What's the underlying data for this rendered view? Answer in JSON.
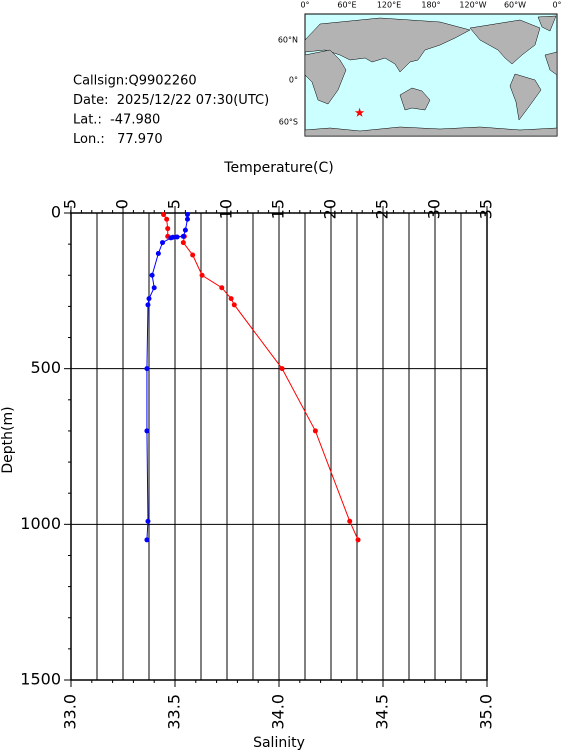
{
  "info": {
    "lines": [
      "Callsign:Q9902260",
      "Date:  2025/12/22 07:30(UTC)",
      "Lat.:  -47.980",
      "Lon.:   77.970"
    ]
  },
  "map": {
    "xticks": [
      "0°",
      "60°E",
      "120°E",
      "180°",
      "120°W",
      "60°W",
      "0°"
    ],
    "yticks": [
      "60°N",
      "0°",
      "60°S"
    ],
    "station_color": "#ff0000"
  },
  "chart_data": {
    "type": "line",
    "xlabel": "Temperature(C)",
    "x2label": "Salinity",
    "ylabel": "Depth(m)",
    "xlim": [
      -5,
      35
    ],
    "xticks": [
      -5,
      0,
      5,
      10,
      15,
      20,
      25,
      30,
      35
    ],
    "x2lim": [
      33.0,
      35.0
    ],
    "x2ticks": [
      {
        "value": 33.0,
        "label": "33.0"
      },
      {
        "value": 33.5,
        "label": "33.5"
      },
      {
        "value": 34.0,
        "label": "34.0"
      },
      {
        "value": 34.5,
        "label": "34.5"
      },
      {
        "value": 35.0,
        "label": "35.0"
      }
    ],
    "ylim": [
      0,
      1500
    ],
    "yticks": [
      0,
      500,
      1000,
      1500
    ],
    "grid": true,
    "series": [
      {
        "color": "#ff0000",
        "axis": "x",
        "depths": [
          5,
          20,
          50,
          75,
          75,
          95,
          135,
          200,
          240,
          275,
          295,
          500,
          700,
          990,
          1050
        ],
        "values": [
          3.9,
          4.2,
          4.3,
          4.3,
          5.9,
          5.8,
          6.7,
          7.6,
          9.5,
          10.4,
          10.7,
          15.3,
          18.5,
          21.8,
          22.6
        ]
      },
      {
        "color": "#0000ff",
        "axis": "x2",
        "depths": [
          5,
          20,
          55,
          75,
          77,
          78,
          80,
          95,
          130,
          200,
          240,
          275,
          295,
          500,
          700,
          990,
          1050
        ],
        "values": [
          33.56,
          33.56,
          33.55,
          33.54,
          33.51,
          33.49,
          33.48,
          33.44,
          33.42,
          33.39,
          33.4,
          33.375,
          33.37,
          33.365,
          33.365,
          33.37,
          33.365
        ]
      }
    ]
  }
}
